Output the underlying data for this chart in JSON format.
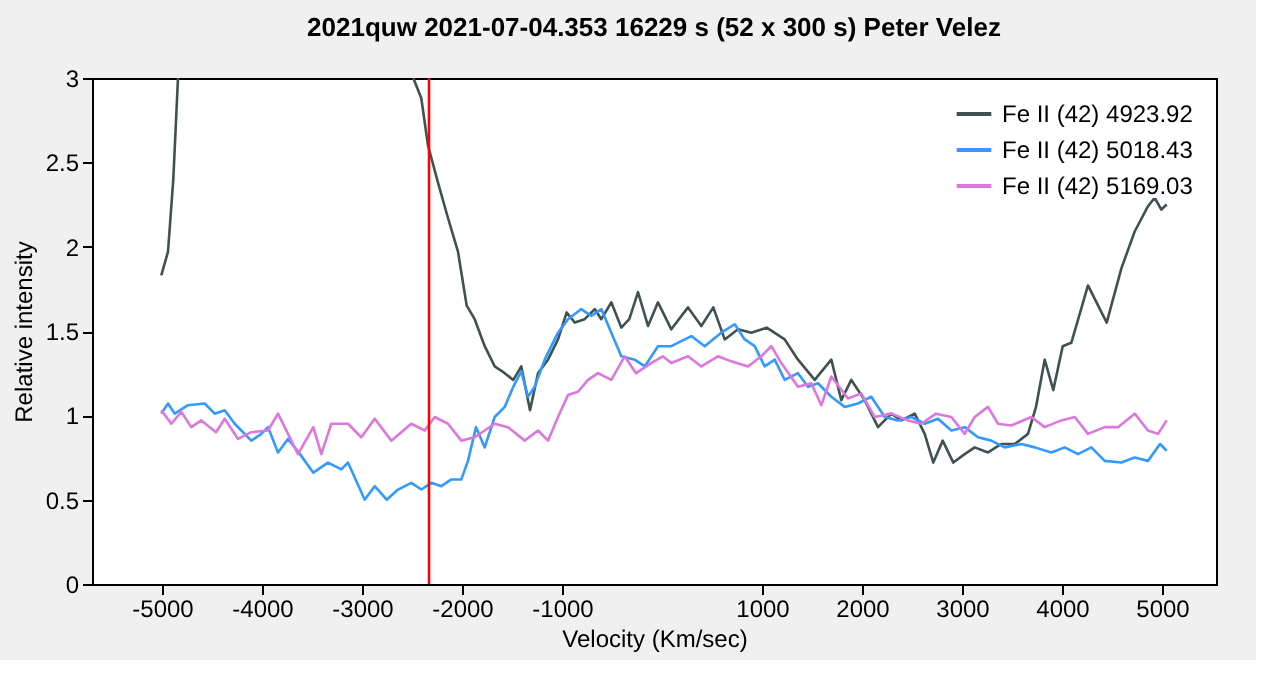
{
  "chart_data": {
    "type": "line",
    "title": "2021quw   2021-07-04.353   16229 s (52 x 300 s)   Peter Velez",
    "xlabel": "Velocity (Km/sec)",
    "ylabel": "Relative intensity",
    "xlim": [
      -5700,
      5540
    ],
    "xticks": [
      -5000,
      -4000,
      -3000,
      -2000,
      -1000,
      1000,
      2000,
      3000,
      4000,
      5000
    ],
    "ylim": [
      0,
      3
    ],
    "yticks": [
      0,
      0.5,
      1,
      1.5,
      2,
      2.5,
      3
    ],
    "grid": false,
    "legend": "top right",
    "marker": "none",
    "line_style": "solid",
    "ref_lines": [
      {
        "axis": "x",
        "value": -2330,
        "color": "#ff0000"
      }
    ],
    "series": [
      {
        "name": "Fe II (42)  4923.92",
        "color": "#3f5151",
        "x": [
          -5007,
          -4940,
          -4887,
          -4840,
          -4700,
          -2487,
          -2407,
          -2340,
          -2240,
          -2140,
          -2040,
          -1953,
          -1873,
          -1773,
          -1673,
          -1573,
          -1487,
          -1407,
          -1320,
          -1240,
          -1140,
          -1040,
          -953,
          -873,
          -773,
          -673,
          -607,
          -507,
          -407,
          -327,
          -240,
          -140,
          -40,
          93,
          260,
          393,
          513,
          627,
          760,
          893,
          1047,
          1227,
          1360,
          1527,
          1693,
          1793,
          1893,
          2027,
          2160,
          2293,
          2393,
          2527,
          2627,
          2713,
          2807,
          2913,
          3027,
          3127,
          3260,
          3393,
          3527,
          3660,
          3740,
          3827,
          3913,
          4007,
          4093,
          4260,
          4447,
          4593,
          4727,
          4860,
          4927,
          4993,
          5047
        ],
        "values": [
          1.83,
          1.97,
          2.4,
          3,
          null,
          3,
          2.88,
          2.6,
          2.38,
          2.17,
          1.97,
          1.65,
          1.57,
          1.41,
          1.29,
          1.25,
          1.21,
          1.29,
          1.03,
          1.25,
          1.33,
          1.45,
          1.61,
          1.55,
          1.57,
          1.63,
          1.57,
          1.67,
          1.52,
          1.57,
          1.73,
          1.53,
          1.67,
          1.51,
          1.64,
          1.53,
          1.64,
          1.45,
          1.51,
          1.49,
          1.52,
          1.45,
          1.33,
          1.21,
          1.33,
          1.09,
          1.21,
          1.09,
          0.93,
          1.01,
          0.97,
          1.01,
          0.89,
          0.72,
          0.85,
          0.72,
          0.77,
          0.81,
          0.78,
          0.83,
          0.83,
          0.89,
          1.05,
          1.33,
          1.15,
          1.41,
          1.43,
          1.77,
          1.55,
          1.87,
          2.09,
          2.24,
          2.29,
          2.22,
          2.25
        ]
      },
      {
        "name": "Fe II (42)  5018.43",
        "color": "#3399ff",
        "x": [
          -5007,
          -4940,
          -4873,
          -4740,
          -4573,
          -4473,
          -4373,
          -4273,
          -4107,
          -4007,
          -3940,
          -3840,
          -3740,
          -3620,
          -3487,
          -3340,
          -3207,
          -3140,
          -2973,
          -2873,
          -2753,
          -2640,
          -2507,
          -2407,
          -2307,
          -2207,
          -2107,
          -2007,
          -1940,
          -1860,
          -1773,
          -1673,
          -1573,
          -1487,
          -1407,
          -1340,
          -1273,
          -1173,
          -1040,
          -940,
          -807,
          -707,
          -607,
          -507,
          -407,
          -273,
          -173,
          -40,
          93,
          293,
          427,
          593,
          727,
          827,
          927,
          1027,
          1127,
          1227,
          1360,
          1460,
          1560,
          1693,
          1827,
          1960,
          2093,
          2227,
          2360,
          2493,
          2627,
          2760,
          2893,
          3027,
          3160,
          3293,
          3427,
          3593,
          3727,
          3893,
          4027,
          4160,
          4293,
          4427,
          4593,
          4727,
          4860,
          4980,
          5047
        ],
        "values": [
          1.01,
          1.07,
          1.01,
          1.06,
          1.07,
          1.01,
          1.03,
          0.95,
          0.85,
          0.89,
          0.93,
          0.78,
          0.86,
          0.77,
          0.66,
          0.72,
          0.68,
          0.72,
          0.5,
          0.58,
          0.5,
          0.56,
          0.6,
          0.56,
          0.6,
          0.58,
          0.62,
          0.62,
          0.73,
          0.93,
          0.81,
          0.99,
          1.05,
          1.17,
          1.26,
          1.11,
          1.17,
          1.33,
          1.49,
          1.57,
          1.63,
          1.59,
          1.63,
          1.49,
          1.35,
          1.33,
          1.29,
          1.41,
          1.41,
          1.47,
          1.41,
          1.49,
          1.54,
          1.45,
          1.41,
          1.29,
          1.33,
          1.21,
          1.25,
          1.17,
          1.19,
          1.11,
          1.05,
          1.07,
          1.11,
          0.99,
          0.97,
          0.99,
          0.95,
          0.98,
          0.91,
          0.93,
          0.87,
          0.85,
          0.81,
          0.83,
          0.81,
          0.78,
          0.81,
          0.77,
          0.81,
          0.73,
          0.72,
          0.75,
          0.73,
          0.83,
          0.79
        ]
      },
      {
        "name": "Fe II (42)  5169.03",
        "color": "#dd77dd",
        "x": [
          -5007,
          -4907,
          -4807,
          -4707,
          -4607,
          -4460,
          -4373,
          -4240,
          -4107,
          -3940,
          -3840,
          -3740,
          -3640,
          -3487,
          -3407,
          -3307,
          -3140,
          -3007,
          -2873,
          -2707,
          -2507,
          -2373,
          -2273,
          -2140,
          -2007,
          -1873,
          -1673,
          -1540,
          -1373,
          -1240,
          -1140,
          -1040,
          -940,
          -840,
          -740,
          -640,
          -507,
          -373,
          -260,
          -107,
          7,
          93,
          260,
          393,
          560,
          693,
          860,
          993,
          1093,
          1193,
          1360,
          1493,
          1593,
          1693,
          1860,
          1993,
          2127,
          2293,
          2460,
          2593,
          2740,
          2893,
          3027,
          3127,
          3260,
          3360,
          3493,
          3693,
          3827,
          3993,
          4127,
          4260,
          4427,
          4560,
          4727,
          4860,
          4960,
          5047
        ],
        "values": [
          1.03,
          0.95,
          1.02,
          0.93,
          0.97,
          0.9,
          0.98,
          0.86,
          0.9,
          0.91,
          1.01,
          0.89,
          0.77,
          0.93,
          0.77,
          0.95,
          0.95,
          0.87,
          0.98,
          0.85,
          0.95,
          0.91,
          0.99,
          0.95,
          0.85,
          0.87,
          0.95,
          0.93,
          0.85,
          0.91,
          0.85,
          0.99,
          1.12,
          1.14,
          1.21,
          1.25,
          1.21,
          1.35,
          1.25,
          1.31,
          1.35,
          1.31,
          1.35,
          1.29,
          1.35,
          1.32,
          1.29,
          1.35,
          1.41,
          1.31,
          1.17,
          1.19,
          1.06,
          1.23,
          1.1,
          1.13,
          0.99,
          1.01,
          0.97,
          0.95,
          1.01,
          0.99,
          0.89,
          0.99,
          1.05,
          0.95,
          0.94,
          0.99,
          0.93,
          0.97,
          0.99,
          0.89,
          0.93,
          0.93,
          1.01,
          0.91,
          0.89,
          0.97
        ]
      }
    ]
  }
}
